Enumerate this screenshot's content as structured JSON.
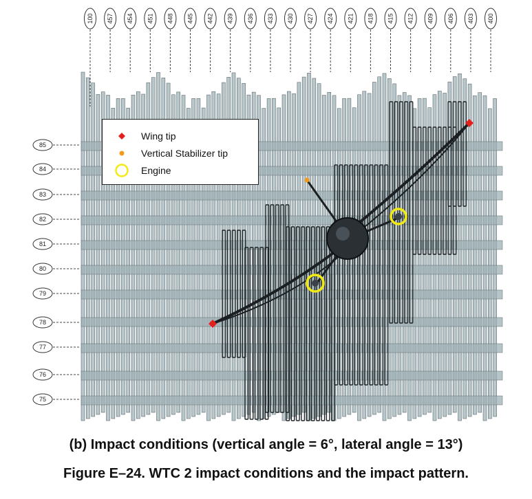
{
  "column_labels": [
    "100",
    "457",
    "454",
    "451",
    "448",
    "445",
    "442",
    "439",
    "436",
    "433",
    "430",
    "427",
    "424",
    "421",
    "418",
    "415",
    "412",
    "409",
    "406",
    "403",
    "400"
  ],
  "floor_labels": [
    "85",
    "84",
    "83",
    "82",
    "81",
    "80",
    "79",
    "78",
    "77",
    "76",
    "75"
  ],
  "legend": {
    "items": [
      {
        "label": "Wing tip",
        "symbol": "red-diamond"
      },
      {
        "label": "Vertical Stabilizer tip",
        "symbol": "orange-dot"
      },
      {
        "label": "Engine",
        "symbol": "yellow-circle"
      }
    ]
  },
  "colors": {
    "column": "#b8c7cb",
    "column_edge": "#5f6a6d",
    "damaged": "#1d2326",
    "aircraft": "#1b1f22",
    "wing_tip": "#e4201f",
    "stabilizer_tip": "#f39a1c",
    "engine_ring": "#f1ea16"
  },
  "captions": {
    "subtitle": "(b) Impact conditions (vertical angle = 6°, lateral angle = 13°)",
    "figure": "Figure E–24.  WTC 2 impact conditions and the impact pattern."
  }
}
